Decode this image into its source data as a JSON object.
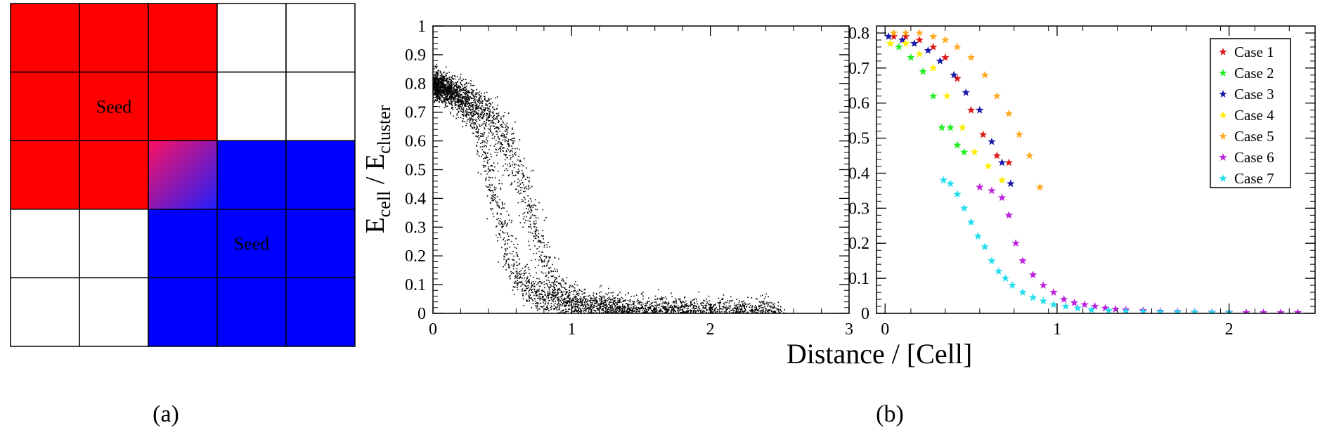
{
  "panels": {
    "a_label": "(a)",
    "b_label": "(b)"
  },
  "grid": {
    "rows": 5,
    "cols": 5,
    "colors": {
      "red": "#ff0000",
      "blue": "#0000ff",
      "white": "#ffffff",
      "blend_start": "#ff1060",
      "blend_end": "#2020ff"
    },
    "cells": [
      [
        "red",
        "red",
        "red",
        "white",
        "white"
      ],
      [
        "red",
        "red",
        "red",
        "white",
        "white"
      ],
      [
        "red",
        "red",
        "blend",
        "blue",
        "blue"
      ],
      [
        "white",
        "white",
        "blue",
        "blue",
        "blue"
      ],
      [
        "white",
        "white",
        "blue",
        "blue",
        "blue"
      ]
    ],
    "seed_labels": [
      {
        "row": 1,
        "col": 1,
        "text": "Seed"
      },
      {
        "row": 3,
        "col": 3,
        "text": "Seed"
      }
    ]
  },
  "shared_xlabel": "Distance / [Cell]",
  "chart_data": [
    {
      "type": "scatter",
      "title": "",
      "xlabel": "Distance / [Cell]",
      "ylabel": "E_cell / E_cluster",
      "ylabel_main": "E",
      "ylabel_sub1": "cell",
      "ylabel_sep": " / E",
      "ylabel_sub2": "cluster",
      "xlim": [
        0,
        3
      ],
      "ylim": [
        0,
        1
      ],
      "xticks": [
        "0",
        "1",
        "2",
        "3"
      ],
      "yticks": [
        "0",
        "0.1",
        "0.2",
        "0.3",
        "0.4",
        "0.5",
        "0.6",
        "0.7",
        "0.8",
        "0.9",
        "1"
      ],
      "color": "#000000",
      "description_points": "dense point cloud; two S-shaped bands falling from ~0.8 near x=0 to ~0 around x=0.5–0.9, long tail toward x≈2.5",
      "bands": [
        {
          "x": [
            0,
            0.15,
            0.3,
            0.4,
            0.5,
            0.6,
            0.75,
            1.0,
            1.4,
            2.0,
            2.5
          ],
          "y": [
            0.8,
            0.76,
            0.68,
            0.52,
            0.3,
            0.13,
            0.06,
            0.03,
            0.015,
            0.005,
            0.002
          ]
        },
        {
          "x": [
            0,
            0.2,
            0.4,
            0.55,
            0.65,
            0.72,
            0.8,
            0.9,
            1.1,
            1.5,
            2.0,
            2.4
          ],
          "y": [
            0.8,
            0.77,
            0.7,
            0.58,
            0.44,
            0.32,
            0.18,
            0.08,
            0.03,
            0.01,
            0.004,
            0.002
          ]
        }
      ]
    },
    {
      "type": "scatter",
      "title": "",
      "xlabel": "Distance / [Cell]",
      "ylabel": "",
      "xlim": [
        -0.05,
        2.5
      ],
      "ylim": [
        0,
        0.82
      ],
      "xticks": [
        "0",
        "1",
        "2"
      ],
      "yticks": [
        "0",
        "0.1",
        "0.2",
        "0.3",
        "0.4",
        "0.5",
        "0.6",
        "0.7",
        "0.8"
      ],
      "legend_position": "top-right",
      "marker": "star",
      "series": [
        {
          "name": "Case 1",
          "color": "#dd1a1a",
          "x": [
            0.05,
            0.12,
            0.2,
            0.28,
            0.35,
            0.42,
            0.5,
            0.57,
            0.65,
            0.72
          ],
          "y": [
            0.79,
            0.79,
            0.78,
            0.76,
            0.73,
            0.67,
            0.58,
            0.51,
            0.45,
            0.43
          ]
        },
        {
          "name": "Case 2",
          "color": "#22ee22",
          "x": [
            0.03,
            0.08,
            0.15,
            0.22,
            0.28,
            0.33,
            0.38,
            0.42,
            0.46
          ],
          "y": [
            0.77,
            0.76,
            0.73,
            0.69,
            0.62,
            0.53,
            0.53,
            0.48,
            0.46
          ]
        },
        {
          "name": "Case 3",
          "color": "#1a1aaa",
          "x": [
            0.02,
            0.1,
            0.17,
            0.25,
            0.32,
            0.4,
            0.47,
            0.55,
            0.62,
            0.68,
            0.73
          ],
          "y": [
            0.79,
            0.78,
            0.77,
            0.75,
            0.72,
            0.68,
            0.63,
            0.58,
            0.49,
            0.43,
            0.37
          ]
        },
        {
          "name": "Case 4",
          "color": "#ffee00",
          "x": [
            0.03,
            0.12,
            0.2,
            0.28,
            0.36,
            0.45,
            0.52,
            0.6,
            0.68
          ],
          "y": [
            0.77,
            0.77,
            0.74,
            0.7,
            0.62,
            0.53,
            0.46,
            0.42,
            0.38
          ]
        },
        {
          "name": "Case 5",
          "color": "#ffaa22",
          "x": [
            0.05,
            0.12,
            0.2,
            0.28,
            0.35,
            0.42,
            0.5,
            0.58,
            0.65,
            0.72,
            0.78,
            0.84,
            0.9
          ],
          "y": [
            0.8,
            0.8,
            0.8,
            0.79,
            0.78,
            0.76,
            0.73,
            0.68,
            0.62,
            0.57,
            0.51,
            0.45,
            0.36
          ]
        },
        {
          "name": "Case 6",
          "color": "#bb22dd",
          "x": [
            0.55,
            0.62,
            0.68,
            0.72,
            0.76,
            0.8,
            0.86,
            0.92,
            0.98,
            1.04,
            1.1,
            1.16,
            1.22,
            1.28,
            1.34,
            1.4,
            1.5,
            1.6,
            1.7,
            1.8,
            1.9,
            2.0,
            2.1,
            2.2,
            2.3,
            2.4
          ],
          "y": [
            0.36,
            0.35,
            0.33,
            0.28,
            0.2,
            0.15,
            0.11,
            0.08,
            0.06,
            0.04,
            0.03,
            0.025,
            0.02,
            0.015,
            0.012,
            0.01,
            0.008,
            0.006,
            0.005,
            0.004,
            0.003,
            0.003,
            0.002,
            0.002,
            0.002,
            0.002
          ]
        },
        {
          "name": "Case 7",
          "color": "#22ddee",
          "x": [
            0.34,
            0.38,
            0.42,
            0.46,
            0.5,
            0.54,
            0.58,
            0.62,
            0.66,
            0.7,
            0.74,
            0.8,
            0.86,
            0.92,
            0.98,
            1.05,
            1.12,
            1.2,
            1.3,
            1.4,
            1.5,
            1.6,
            1.7,
            1.8,
            1.9,
            2.0
          ],
          "y": [
            0.38,
            0.37,
            0.34,
            0.3,
            0.26,
            0.22,
            0.19,
            0.15,
            0.12,
            0.1,
            0.08,
            0.06,
            0.045,
            0.035,
            0.025,
            0.02,
            0.015,
            0.01,
            0.008,
            0.006,
            0.005,
            0.004,
            0.003,
            0.003,
            0.002,
            0.002
          ]
        }
      ]
    }
  ]
}
